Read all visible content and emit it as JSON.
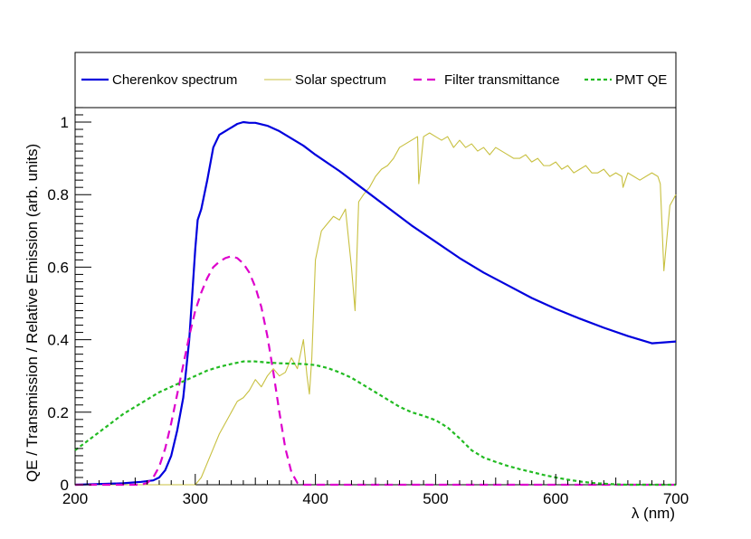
{
  "chart_data": {
    "type": "line",
    "title": "",
    "xlabel": "λ (nm)",
    "ylabel": "QE / Transmission / Relative Emission (arb. units)",
    "xlim": [
      200,
      700
    ],
    "ylim": [
      0,
      1.04
    ],
    "x_ticks": [
      200,
      300,
      400,
      500,
      600,
      700
    ],
    "x_tick_labels": [
      "200",
      "300",
      "400",
      "500",
      "600",
      "700"
    ],
    "y_ticks": [
      0,
      0.2,
      0.4,
      0.6,
      0.8,
      1.0
    ],
    "y_tick_labels": [
      "0",
      "0.2",
      "0.4",
      "0.6",
      "0.8",
      "1"
    ],
    "grid": false,
    "legend_position": "top",
    "series": [
      {
        "name": "Cherenkov spectrum",
        "color": "#0000dd",
        "style": "solid",
        "x": [
          200,
          220,
          240,
          255,
          265,
          270,
          275,
          280,
          285,
          290,
          295,
          300,
          302,
          305,
          310,
          315,
          320,
          325,
          330,
          335,
          340,
          345,
          350,
          360,
          370,
          380,
          390,
          400,
          420,
          440,
          460,
          480,
          500,
          520,
          540,
          560,
          580,
          600,
          620,
          640,
          660,
          680,
          700
        ],
        "y": [
          0.0,
          0.002,
          0.004,
          0.008,
          0.012,
          0.02,
          0.04,
          0.08,
          0.15,
          0.24,
          0.4,
          0.65,
          0.73,
          0.76,
          0.84,
          0.93,
          0.965,
          0.975,
          0.985,
          0.995,
          1.0,
          0.998,
          0.998,
          0.99,
          0.975,
          0.955,
          0.935,
          0.91,
          0.865,
          0.815,
          0.765,
          0.715,
          0.67,
          0.625,
          0.585,
          0.55,
          0.515,
          0.485,
          0.458,
          0.433,
          0.41,
          0.39,
          0.395
        ]
      },
      {
        "name": "Solar spectrum",
        "color": "#c8c040",
        "style": "solid-thin",
        "x": [
          200,
          295,
          300,
          305,
          310,
          315,
          320,
          325,
          330,
          335,
          340,
          345,
          350,
          355,
          360,
          365,
          370,
          375,
          380,
          385,
          390,
          393,
          395,
          397,
          400,
          405,
          410,
          415,
          420,
          425,
          430,
          433,
          436,
          440,
          445,
          450,
          455,
          460,
          465,
          470,
          475,
          480,
          485,
          486,
          490,
          495,
          500,
          505,
          510,
          515,
          520,
          525,
          530,
          535,
          540,
          545,
          550,
          555,
          560,
          565,
          570,
          575,
          580,
          585,
          590,
          595,
          600,
          605,
          610,
          615,
          620,
          625,
          630,
          635,
          640,
          645,
          650,
          655,
          656,
          660,
          665,
          670,
          675,
          680,
          685,
          687,
          690,
          695,
          700
        ],
        "y": [
          0.0,
          0.0,
          0.0,
          0.02,
          0.06,
          0.1,
          0.14,
          0.17,
          0.2,
          0.23,
          0.24,
          0.26,
          0.29,
          0.27,
          0.3,
          0.32,
          0.3,
          0.31,
          0.35,
          0.32,
          0.4,
          0.3,
          0.25,
          0.35,
          0.62,
          0.7,
          0.72,
          0.74,
          0.73,
          0.76,
          0.6,
          0.48,
          0.78,
          0.8,
          0.82,
          0.85,
          0.87,
          0.88,
          0.9,
          0.93,
          0.94,
          0.95,
          0.96,
          0.83,
          0.96,
          0.97,
          0.96,
          0.95,
          0.96,
          0.93,
          0.95,
          0.93,
          0.94,
          0.92,
          0.93,
          0.91,
          0.93,
          0.92,
          0.91,
          0.9,
          0.9,
          0.91,
          0.89,
          0.9,
          0.88,
          0.88,
          0.89,
          0.87,
          0.88,
          0.86,
          0.87,
          0.88,
          0.86,
          0.86,
          0.87,
          0.85,
          0.86,
          0.85,
          0.82,
          0.86,
          0.85,
          0.84,
          0.85,
          0.86,
          0.85,
          0.83,
          0.59,
          0.77,
          0.8
        ]
      },
      {
        "name": "Filter transmittance",
        "color": "#dd00cc",
        "style": "dashed",
        "x": [
          200,
          255,
          260,
          265,
          270,
          275,
          280,
          285,
          290,
          295,
          300,
          305,
          310,
          315,
          320,
          325,
          330,
          335,
          340,
          345,
          350,
          355,
          360,
          365,
          370,
          375,
          380,
          385,
          390,
          400,
          450,
          500,
          550,
          600,
          650,
          700
        ],
        "y": [
          0.0,
          0.0,
          0.005,
          0.02,
          0.05,
          0.1,
          0.17,
          0.25,
          0.33,
          0.41,
          0.48,
          0.53,
          0.57,
          0.6,
          0.615,
          0.625,
          0.63,
          0.625,
          0.61,
          0.585,
          0.545,
          0.49,
          0.41,
          0.31,
          0.2,
          0.1,
          0.035,
          0.005,
          0.0,
          0.0,
          0.0,
          0.0,
          0.0,
          0.0,
          0.0,
          0.0
        ]
      },
      {
        "name": "PMT QE",
        "color": "#22bb22",
        "style": "dotted",
        "x": [
          200,
          210,
          220,
          230,
          240,
          250,
          260,
          270,
          280,
          290,
          300,
          310,
          320,
          330,
          340,
          350,
          360,
          370,
          380,
          390,
          400,
          410,
          420,
          430,
          440,
          450,
          460,
          470,
          480,
          490,
          500,
          510,
          520,
          530,
          540,
          550,
          560,
          570,
          580,
          590,
          600,
          610,
          620,
          630,
          640,
          650,
          660,
          670,
          680,
          690,
          700
        ],
        "y": [
          0.095,
          0.12,
          0.145,
          0.17,
          0.195,
          0.215,
          0.235,
          0.255,
          0.27,
          0.285,
          0.3,
          0.315,
          0.325,
          0.333,
          0.34,
          0.34,
          0.337,
          0.335,
          0.334,
          0.333,
          0.33,
          0.322,
          0.31,
          0.295,
          0.275,
          0.255,
          0.235,
          0.215,
          0.2,
          0.19,
          0.178,
          0.158,
          0.128,
          0.095,
          0.075,
          0.063,
          0.052,
          0.043,
          0.035,
          0.027,
          0.02,
          0.014,
          0.009,
          0.005,
          0.003,
          0.001,
          0.0,
          0.0,
          0.0,
          0.0,
          0.0
        ]
      }
    ]
  }
}
